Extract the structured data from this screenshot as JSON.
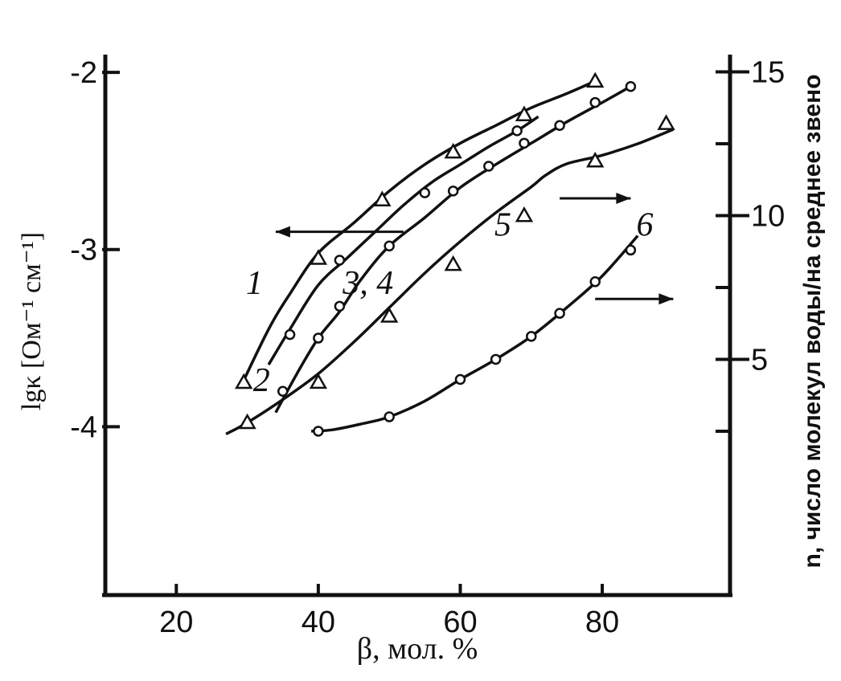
{
  "chart_data": {
    "type": "line",
    "title": "",
    "xlabel": "β, мол. %",
    "ylabel": "lgκ [Ом⁻¹ см⁻¹]",
    "y2label": "n, число молекул воды/на среднее звено",
    "xlim": [
      10,
      98
    ],
    "ylim": [
      -4.95,
      -1.9
    ],
    "y2lim": [
      -3.2,
      15.6
    ],
    "x_ticks": [
      20,
      40,
      60,
      80
    ],
    "y_ticks": [
      -2,
      -3,
      -4
    ],
    "y_tick_labels": [
      "-2",
      "-3",
      "-4"
    ],
    "y2_ticks": [
      15,
      10,
      5
    ],
    "y2_tick_labels": [
      "15",
      "10",
      "5"
    ],
    "y2_minor_ticks": [
      12.5,
      7.5,
      2.5
    ],
    "grid": false,
    "legend": "none",
    "series": [
      {
        "curve_label": "1",
        "axis": "left",
        "marker": "triangle",
        "curve_x": [
          29,
          33,
          36,
          40,
          45,
          50,
          55,
          60,
          65,
          70,
          75,
          79
        ],
        "curve_y": [
          -3.78,
          -3.45,
          -3.25,
          -3.02,
          -2.85,
          -2.67,
          -2.52,
          -2.4,
          -2.3,
          -2.2,
          -2.12,
          -2.05
        ],
        "points_x": [
          29.5,
          40,
          49,
          59,
          69,
          79
        ],
        "points_y": [
          -3.75,
          -3.05,
          -2.72,
          -2.45,
          -2.24,
          -2.05
        ]
      },
      {
        "curve_label": "2",
        "axis": "left",
        "marker": "circle",
        "curve_x": [
          33,
          36,
          40,
          44,
          48,
          52,
          56,
          60,
          64,
          68,
          71
        ],
        "curve_y": [
          -3.65,
          -3.45,
          -3.2,
          -3.05,
          -2.9,
          -2.75,
          -2.62,
          -2.52,
          -2.42,
          -2.33,
          -2.25
        ],
        "points_x": [
          36,
          43,
          55,
          68
        ],
        "points_y": [
          -3.48,
          -3.06,
          -2.68,
          -2.33
        ]
      },
      {
        "curve_label": "3, 4",
        "axis": "left",
        "marker": "circle",
        "curve_x": [
          34,
          37,
          40,
          43,
          46,
          50,
          55,
          60,
          65,
          70,
          75,
          80,
          84
        ],
        "curve_y": [
          -3.92,
          -3.7,
          -3.5,
          -3.35,
          -3.17,
          -2.98,
          -2.82,
          -2.65,
          -2.52,
          -2.4,
          -2.28,
          -2.17,
          -2.08
        ],
        "points_x": [
          35,
          40,
          43,
          50,
          59,
          64,
          69,
          74,
          79,
          84
        ],
        "points_y": [
          -3.8,
          -3.5,
          -3.32,
          -2.98,
          -2.67,
          -2.53,
          -2.4,
          -2.3,
          -2.17,
          -2.08
        ]
      },
      {
        "curve_label": "5",
        "axis": "right",
        "marker": "triangle",
        "curve_x": [
          27,
          30,
          35,
          40,
          45,
          50,
          55,
          60,
          65,
          70,
          72,
          75,
          80,
          85,
          90
        ],
        "curve_y": [
          2.4,
          2.8,
          3.6,
          4.5,
          5.6,
          6.8,
          8.0,
          9.1,
          10.1,
          11.0,
          11.4,
          11.8,
          12.1,
          12.5,
          13.0
        ],
        "points_x": [
          30,
          40,
          50,
          59,
          69,
          79,
          89
        ],
        "points_y": [
          2.8,
          4.2,
          6.5,
          8.3,
          10.0,
          11.9,
          13.2
        ]
      },
      {
        "curve_label": "6",
        "axis": "right",
        "marker": "circle",
        "curve_x": [
          39,
          42,
          46,
          50,
          55,
          60,
          65,
          70,
          75,
          80,
          85
        ],
        "curve_y": [
          2.5,
          2.55,
          2.75,
          3.0,
          3.55,
          4.3,
          5.0,
          5.8,
          6.8,
          7.9,
          9.3
        ],
        "points_x": [
          40,
          50,
          60,
          65,
          70,
          74,
          79,
          84
        ],
        "points_y": [
          2.5,
          3.0,
          4.3,
          5.0,
          5.8,
          6.6,
          7.7,
          8.8
        ]
      }
    ],
    "annotations": [
      "1",
      "2",
      "3, 4",
      "5",
      "6"
    ],
    "axis_arrows": [
      {
        "series": "1–4",
        "direction": "left"
      },
      {
        "series": "5",
        "direction": "right"
      },
      {
        "series": "6",
        "direction": "right"
      }
    ]
  }
}
